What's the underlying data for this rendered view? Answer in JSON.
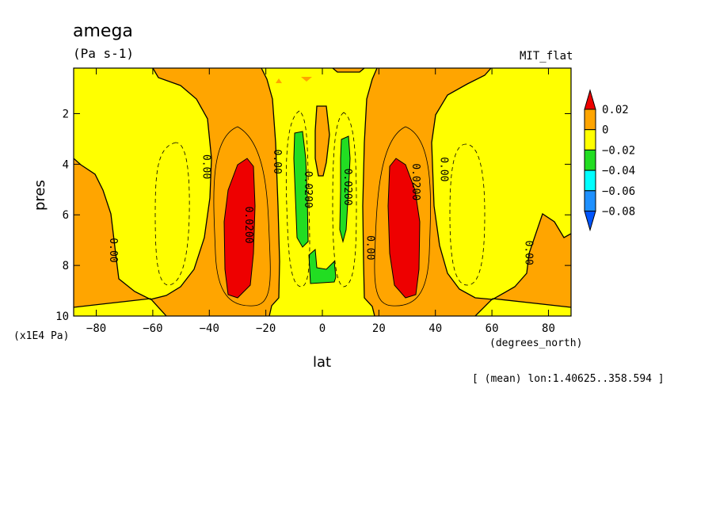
{
  "chart_data": {
    "type": "heatmap",
    "title": "amega",
    "units": "(Pa s-1)",
    "model_label": "MIT_flat",
    "xlabel": "lat",
    "xunits": "(degrees_north)",
    "ylabel": "pres",
    "yunits": "(x1E4 Pa)",
    "footnote": "[ (mean) lon:1.40625..358.594 ]",
    "xlim": [
      -88,
      88
    ],
    "ylim": [
      0.2,
      10
    ],
    "y_inverted": true,
    "x_ticks": [
      -80,
      -60,
      -40,
      -20,
      0,
      20,
      40,
      60,
      80
    ],
    "y_ticks": [
      2,
      4,
      6,
      8,
      10
    ],
    "colorbar": {
      "labels": [
        "0.02",
        "0",
        "-0.02",
        "-0.04",
        "-0.06",
        "-0.08"
      ],
      "bins": [
        {
          "range": ">0.02",
          "color": "#ee0000"
        },
        {
          "range": "0..0.02",
          "color": "#ffa500"
        },
        {
          "range": "-0.02..0",
          "color": "#ffff00"
        },
        {
          "range": "-0.04..-0.02",
          "color": "#22dd22"
        },
        {
          "range": "-0.06..-0.04",
          "color": "#00ffff"
        },
        {
          "range": "-0.08..-0.06",
          "color": "#1e90ff"
        },
        {
          "range": "<-0.08",
          "color": "#0055ff"
        }
      ]
    },
    "contour_labels": [
      {
        "text": "0.00",
        "lat": -74,
        "pres": 7.4
      },
      {
        "text": "0.00",
        "lat": -41,
        "pres": 4.1
      },
      {
        "text": "0.0200",
        "lat": -26,
        "pres": 6.4
      },
      {
        "text": "0.00",
        "lat": -16,
        "pres": 3.9
      },
      {
        "text": "0.0200",
        "lat": -5,
        "pres": 5.0
      },
      {
        "text": "0.0200",
        "lat": 9,
        "pres": 4.9
      },
      {
        "text": "0.00",
        "lat": 17,
        "pres": 7.3
      },
      {
        "text": "0.0200",
        "lat": 33,
        "pres": 4.7
      },
      {
        "text": "0.00",
        "lat": 43,
        "pres": 4.2
      },
      {
        "text": "0.00",
        "lat": 73,
        "pres": 7.5
      }
    ],
    "features": [
      {
        "sign": "positive",
        "max_bin": ">0.02",
        "lat": [
          -37,
          -25
        ],
        "pres": [
          3.7,
          9.2
        ]
      },
      {
        "sign": "positive",
        "max_bin": ">0.02",
        "lat": [
          25,
          37
        ],
        "pres": [
          3.7,
          9.2
        ]
      },
      {
        "sign": "negative",
        "min_bin": "-0.04..-0.02",
        "lat": [
          -11,
          -5
        ],
        "pres": [
          2.7,
          8.7
        ]
      },
      {
        "sign": "negative",
        "min_bin": "-0.04..-0.02",
        "lat": [
          7,
          10
        ],
        "pres": [
          2.9,
          7.2
        ]
      }
    ]
  }
}
